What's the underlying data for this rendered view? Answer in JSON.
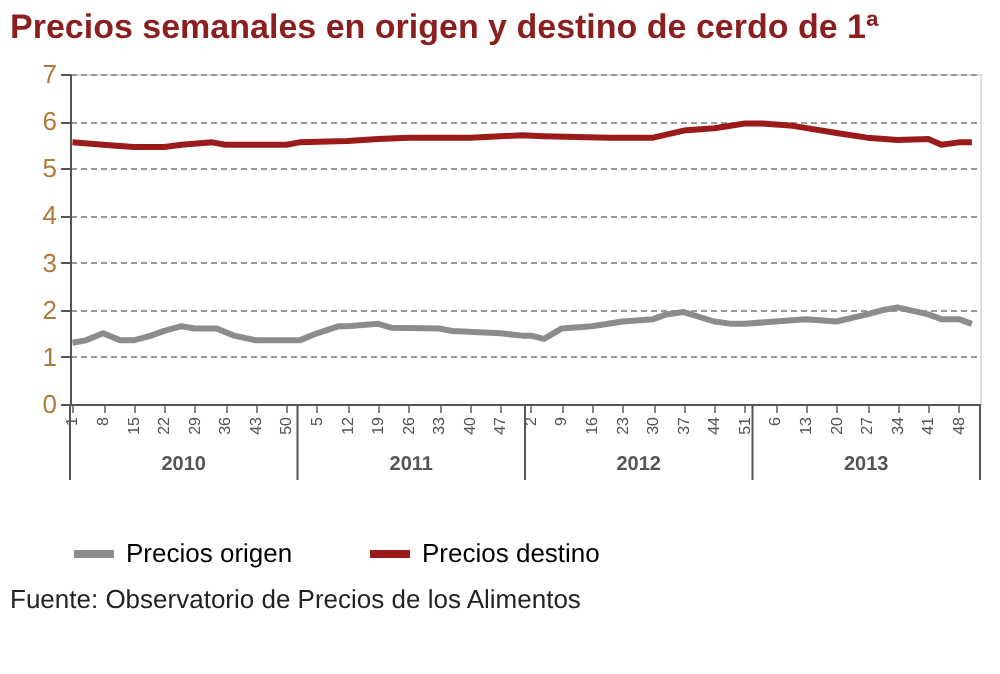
{
  "chart_data": {
    "type": "line",
    "title": "Precios semanales en origen y destino de cerdo de 1ª",
    "xlim": [
      "2009-12-31",
      "2013-12-29"
    ],
    "ylim": [
      0,
      7
    ],
    "yticks": [
      0,
      1,
      2,
      3,
      4,
      5,
      6,
      7
    ],
    "xticks": [
      {
        "value": "2010-01-04",
        "label": "1"
      },
      {
        "value": "2010-02-22",
        "label": "8"
      },
      {
        "value": "2010-04-12",
        "label": "15"
      },
      {
        "value": "2010-05-31",
        "label": "22"
      },
      {
        "value": "2010-07-19",
        "label": "29"
      },
      {
        "value": "2010-09-06",
        "label": "36"
      },
      {
        "value": "2010-10-25",
        "label": "43"
      },
      {
        "value": "2010-12-13",
        "label": "50"
      },
      {
        "value": "2011-01-31",
        "label": "5"
      },
      {
        "value": "2011-03-21",
        "label": "12"
      },
      {
        "value": "2011-05-09",
        "label": "19"
      },
      {
        "value": "2011-06-27",
        "label": "26"
      },
      {
        "value": "2011-08-15",
        "label": "33"
      },
      {
        "value": "2011-10-03",
        "label": "40"
      },
      {
        "value": "2011-11-21",
        "label": "47"
      },
      {
        "value": "2012-01-09",
        "label": "2"
      },
      {
        "value": "2012-02-27",
        "label": "9"
      },
      {
        "value": "2012-04-16",
        "label": "16"
      },
      {
        "value": "2012-06-04",
        "label": "23"
      },
      {
        "value": "2012-07-23",
        "label": "30"
      },
      {
        "value": "2012-09-10",
        "label": "37"
      },
      {
        "value": "2012-10-29",
        "label": "44"
      },
      {
        "value": "2012-12-17",
        "label": "51"
      },
      {
        "value": "2013-02-04",
        "label": "6"
      },
      {
        "value": "2013-03-25",
        "label": "13"
      },
      {
        "value": "2013-05-13",
        "label": "20"
      },
      {
        "value": "2013-07-01",
        "label": "27"
      },
      {
        "value": "2013-08-19",
        "label": "34"
      },
      {
        "value": "2013-10-07",
        "label": "41"
      },
      {
        "value": "2013-11-25",
        "label": "48"
      }
    ],
    "grid": "y",
    "legend": "bottom",
    "marker": "none",
    "line_style": "solid",
    "series": [
      {
        "name": "Precios origen",
        "color": "#8c8c8c",
        "x": [
          "2010-01-04",
          "2010-01-25",
          "2010-02-22",
          "2010-03-22",
          "2010-04-12",
          "2010-05-10",
          "2010-05-31",
          "2010-06-28",
          "2010-07-19",
          "2010-08-23",
          "2010-09-20",
          "2010-10-25",
          "2010-12-13",
          "2011-01-03",
          "2011-01-31",
          "2011-03-07",
          "2011-03-21",
          "2011-05-09",
          "2011-05-30",
          "2011-08-15",
          "2011-09-05",
          "2011-11-21",
          "2011-12-26",
          "2012-01-09",
          "2012-01-30",
          "2012-02-27",
          "2012-04-16",
          "2012-06-04",
          "2012-07-23",
          "2012-08-13",
          "2012-09-10",
          "2012-10-29",
          "2012-11-26",
          "2012-12-17",
          "2013-02-04",
          "2013-03-25",
          "2013-05-13",
          "2013-07-01",
          "2013-07-29",
          "2013-08-19",
          "2013-10-07",
          "2013-10-28",
          "2013-11-25",
          "2013-12-16"
        ],
        "values": [
          1.3,
          1.35,
          1.5,
          1.35,
          1.35,
          1.45,
          1.55,
          1.65,
          1.6,
          1.6,
          1.45,
          1.35,
          1.35,
          1.35,
          1.5,
          1.65,
          1.65,
          1.7,
          1.62,
          1.6,
          1.55,
          1.5,
          1.45,
          1.45,
          1.38,
          1.6,
          1.65,
          1.75,
          1.8,
          1.9,
          1.95,
          1.75,
          1.7,
          1.7,
          1.75,
          1.8,
          1.75,
          1.9,
          2.0,
          2.05,
          1.9,
          1.8,
          1.8,
          1.7
        ]
      },
      {
        "name": "Precios destino",
        "color": "#9b1b1b",
        "x": [
          "2010-01-04",
          "2010-02-22",
          "2010-04-12",
          "2010-05-31",
          "2010-06-28",
          "2010-08-16",
          "2010-09-06",
          "2010-12-13",
          "2011-01-03",
          "2011-03-21",
          "2011-05-09",
          "2011-06-27",
          "2011-10-03",
          "2011-11-21",
          "2011-12-26",
          "2012-01-30",
          "2012-05-14",
          "2012-07-23",
          "2012-09-10",
          "2012-10-29",
          "2012-12-17",
          "2013-01-14",
          "2013-03-04",
          "2013-05-13",
          "2013-07-01",
          "2013-08-19",
          "2013-10-07",
          "2013-10-28",
          "2013-11-25",
          "2013-12-16"
        ],
        "values": [
          5.55,
          5.5,
          5.45,
          5.45,
          5.5,
          5.55,
          5.5,
          5.5,
          5.55,
          5.58,
          5.62,
          5.65,
          5.65,
          5.68,
          5.7,
          5.68,
          5.65,
          5.65,
          5.8,
          5.85,
          5.95,
          5.95,
          5.9,
          5.75,
          5.65,
          5.6,
          5.62,
          5.5,
          5.55,
          5.55
        ]
      }
    ],
    "annotations": [
      "2010",
      "2011",
      "2012",
      "2013",
      "Fuente: Observatorio de Precios de los Alimentos"
    ]
  }
}
